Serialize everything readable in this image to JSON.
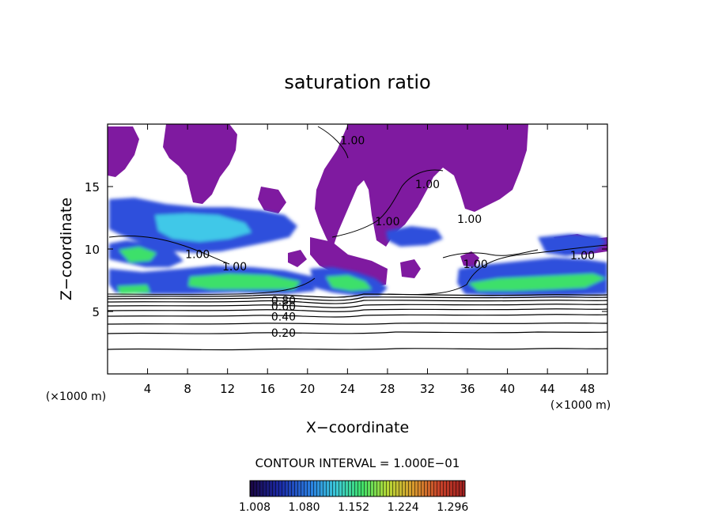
{
  "chart_data": {
    "type": "heatmap",
    "title": "saturation ratio",
    "xlabel": "X−coordinate",
    "ylabel": "Z−coordinate",
    "x_unit_label": "(×1000 m)",
    "y_unit_label": "(×1000 m)",
    "xlim": [
      0,
      50
    ],
    "ylim": [
      0,
      20
    ],
    "x_ticks": [
      4,
      8,
      12,
      16,
      20,
      24,
      28,
      32,
      36,
      40,
      44,
      48
    ],
    "y_ticks": [
      5,
      10,
      15
    ],
    "contour_interval_label": "CONTOUR INTERVAL = 1.000E−01",
    "contour_levels": [
      0.1,
      0.2,
      0.3,
      0.4,
      0.5,
      0.6,
      0.7,
      0.8,
      0.9,
      1.0
    ],
    "contour_labels": [
      {
        "text": "0.20",
        "x": 17.6,
        "z": 3.3
      },
      {
        "text": "0.40",
        "x": 17.6,
        "z": 4.6
      },
      {
        "text": "0.60",
        "x": 17.6,
        "z": 5.4
      },
      {
        "text": "0.80",
        "x": 17.6,
        "z": 5.9
      },
      {
        "text": "1.00",
        "x": 9.0,
        "z": 9.6
      },
      {
        "text": "1.00",
        "x": 12.7,
        "z": 8.6
      },
      {
        "text": "1.00",
        "x": 28.0,
        "z": 12.2
      },
      {
        "text": "1.00",
        "x": 32.0,
        "z": 15.2
      },
      {
        "text": "1.00",
        "x": 36.8,
        "z": 8.8
      },
      {
        "text": "1.00",
        "x": 47.5,
        "z": 9.5
      },
      {
        "text": "1.00",
        "x": 24.5,
        "z": 18.7
      },
      {
        "text": "1.00",
        "x": 36.2,
        "z": 12.4
      }
    ],
    "colorbar": {
      "ticks": [
        "1.008",
        "1.080",
        "1.152",
        "1.224",
        "1.296"
      ],
      "colors": [
        "#1a0640",
        "#1b2aa6",
        "#2a7de0",
        "#3cc9d8",
        "#3fe06a",
        "#b6d836",
        "#d89a2e",
        "#c8432a",
        "#9e1f1f"
      ]
    },
    "colors": {
      "supersat_high": "#7f1aa0",
      "band_blue": "#2f4fdc",
      "band_cyan": "#40c8e8",
      "band_green": "#3ce06a",
      "contour": "#000000"
    }
  }
}
